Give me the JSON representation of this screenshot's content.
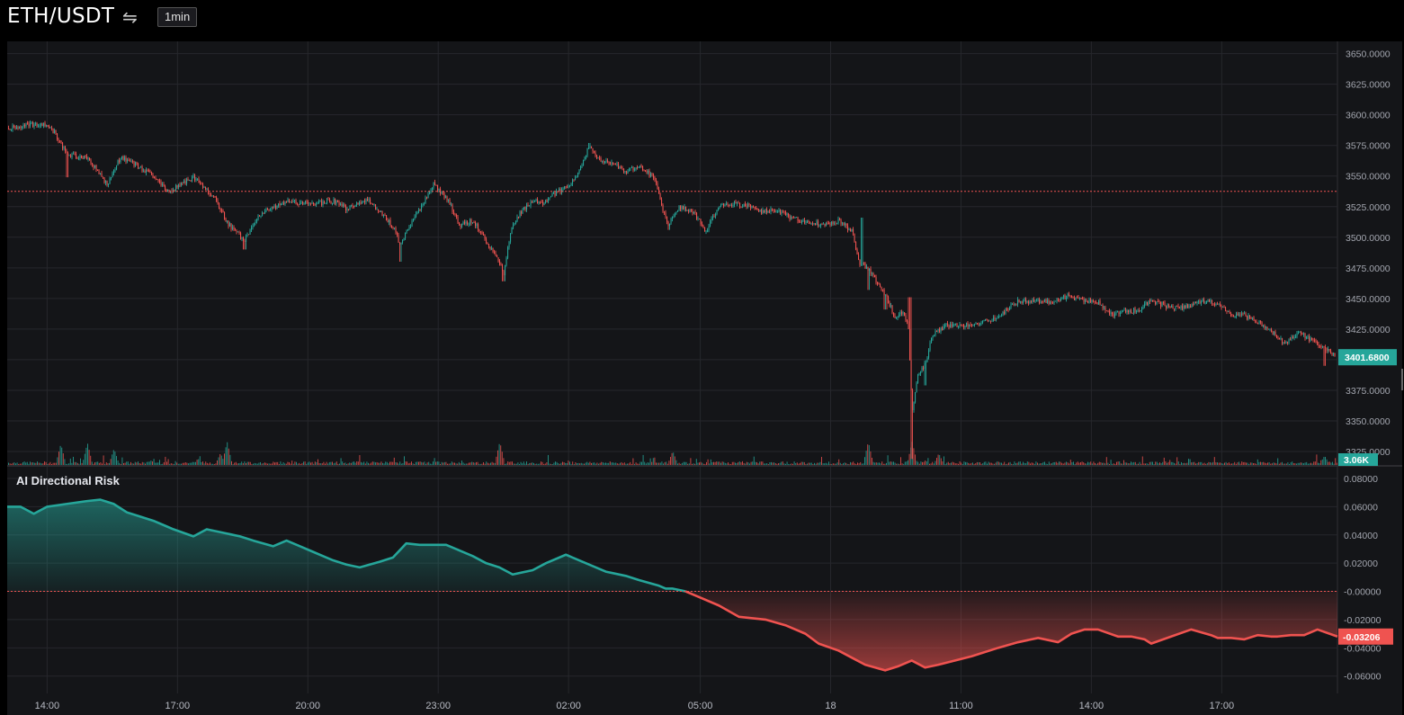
{
  "header": {
    "symbol": "ETH/USDT",
    "swap_icon": "swap-arrows-icon",
    "interval": "1min"
  },
  "colors": {
    "up": "#26a69a",
    "down": "#ef5350",
    "background": "#141518",
    "grid": "#26272c",
    "axis_text": "#a3a6af",
    "reference_line": "#ef5350"
  },
  "chart_data": [
    {
      "type": "candlestick",
      "title": "",
      "x_tick_labels": [
        "14:00",
        "17:00",
        "20:00",
        "23:00",
        "02:00",
        "05:00",
        "18",
        "11:00",
        "14:00",
        "17:00"
      ],
      "y_tick_labels": [
        "3650.0000",
        "3625.0000",
        "3600.0000",
        "3575.0000",
        "3550.0000",
        "3525.0000",
        "3500.0000",
        "3475.0000",
        "3450.0000",
        "3425.0000",
        "3400.0000",
        "3375.0000",
        "3350.0000",
        "3325.0000"
      ],
      "ylim": [
        3314,
        3660
      ],
      "reference_level": 3537.5,
      "current_price_label": "3401.6800",
      "volume_label": "3.06K",
      "grid": true,
      "close_path": [
        [
          0,
          3589
        ],
        [
          0.015,
          3592
        ],
        [
          0.028,
          3592
        ],
        [
          0.035,
          3586
        ],
        [
          0.045,
          3567
        ],
        [
          0.06,
          3565
        ],
        [
          0.075,
          3543
        ],
        [
          0.085,
          3566
        ],
        [
          0.095,
          3560
        ],
        [
          0.11,
          3549
        ],
        [
          0.12,
          3537
        ],
        [
          0.14,
          3549
        ],
        [
          0.155,
          3533
        ],
        [
          0.165,
          3512
        ],
        [
          0.178,
          3497
        ],
        [
          0.19,
          3519
        ],
        [
          0.21,
          3529
        ],
        [
          0.23,
          3527
        ],
        [
          0.245,
          3530
        ],
        [
          0.255,
          3523
        ],
        [
          0.27,
          3531
        ],
        [
          0.282,
          3519
        ],
        [
          0.29,
          3508
        ],
        [
          0.295,
          3494
        ],
        [
          0.305,
          3514
        ],
        [
          0.315,
          3533
        ],
        [
          0.32,
          3544
        ],
        [
          0.33,
          3532
        ],
        [
          0.34,
          3510
        ],
        [
          0.35,
          3514
        ],
        [
          0.36,
          3496
        ],
        [
          0.367,
          3486
        ],
        [
          0.373,
          3470
        ],
        [
          0.378,
          3504
        ],
        [
          0.385,
          3520
        ],
        [
          0.395,
          3530
        ],
        [
          0.404,
          3528
        ],
        [
          0.41,
          3535
        ],
        [
          0.42,
          3541
        ],
        [
          0.428,
          3550
        ],
        [
          0.437,
          3574
        ],
        [
          0.447,
          3561
        ],
        [
          0.455,
          3561
        ],
        [
          0.465,
          3553
        ],
        [
          0.475,
          3559
        ],
        [
          0.487,
          3547
        ],
        [
          0.492,
          3524
        ],
        [
          0.497,
          3510
        ],
        [
          0.505,
          3525
        ],
        [
          0.515,
          3521
        ],
        [
          0.525,
          3505
        ],
        [
          0.535,
          3526
        ],
        [
          0.545,
          3527
        ],
        [
          0.556,
          3526
        ],
        [
          0.567,
          3521
        ],
        [
          0.577,
          3522
        ],
        [
          0.587,
          3517
        ],
        [
          0.595,
          3514
        ],
        [
          0.605,
          3512
        ],
        [
          0.615,
          3511
        ],
        [
          0.625,
          3513
        ],
        [
          0.635,
          3505
        ],
        [
          0.64,
          3480
        ],
        [
          0.647,
          3474
        ],
        [
          0.653,
          3464
        ],
        [
          0.66,
          3452
        ],
        [
          0.668,
          3433
        ],
        [
          0.673,
          3440
        ],
        [
          0.677,
          3428
        ],
        [
          0.68,
          3356
        ],
        [
          0.684,
          3388
        ],
        [
          0.69,
          3397
        ],
        [
          0.695,
          3420
        ],
        [
          0.705,
          3428
        ],
        [
          0.72,
          3428
        ],
        [
          0.735,
          3431
        ],
        [
          0.745,
          3436
        ],
        [
          0.76,
          3448
        ],
        [
          0.772,
          3448
        ],
        [
          0.785,
          3447
        ],
        [
          0.797,
          3452
        ],
        [
          0.81,
          3448
        ],
        [
          0.82,
          3447
        ],
        [
          0.83,
          3437
        ],
        [
          0.84,
          3439
        ],
        [
          0.85,
          3441
        ],
        [
          0.86,
          3448
        ],
        [
          0.87,
          3444
        ],
        [
          0.88,
          3442
        ],
        [
          0.89,
          3445
        ],
        [
          0.9,
          3448
        ],
        [
          0.91,
          3445
        ],
        [
          0.92,
          3436
        ],
        [
          0.93,
          3436
        ],
        [
          0.94,
          3431
        ],
        [
          0.948,
          3425
        ],
        [
          0.955,
          3418
        ],
        [
          0.96,
          3412
        ],
        [
          0.97,
          3422
        ],
        [
          0.98,
          3416
        ],
        [
          0.99,
          3410
        ],
        [
          1,
          3402
        ]
      ],
      "low_spikes": [
        [
          0.045,
          3549
        ],
        [
          0.12,
          3538
        ],
        [
          0.178,
          3490
        ],
        [
          0.295,
          3480
        ],
        [
          0.373,
          3464
        ],
        [
          0.497,
          3506
        ],
        [
          0.647,
          3457
        ],
        [
          0.66,
          3441
        ],
        [
          0.68,
          3319
        ],
        [
          0.69,
          3379
        ],
        [
          0.99,
          3395
        ]
      ],
      "high_spikes": [
        [
          0.437,
          3577
        ],
        [
          0.642,
          3516
        ],
        [
          0.678,
          3451
        ]
      ],
      "volume_spikes": [
        [
          0.04,
          0.9
        ],
        [
          0.06,
          0.95
        ],
        [
          0.08,
          0.7
        ],
        [
          0.16,
          0.5
        ],
        [
          0.165,
          1.0
        ],
        [
          0.37,
          1.0
        ],
        [
          0.5,
          0.6
        ],
        [
          0.647,
          1.0
        ],
        [
          0.68,
          1.0
        ],
        [
          0.7,
          0.5
        ],
        [
          0.99,
          0.4
        ]
      ]
    },
    {
      "type": "area",
      "title": "AI Directional Risk",
      "y_tick_labels": [
        "0.08000",
        "0.06000",
        "0.04000",
        "0.02000",
        "-0.00000",
        "-0.02000",
        "-0.04000",
        "-0.06000"
      ],
      "ylim": [
        -0.0723,
        0.0883
      ],
      "zero_line": 0,
      "current_value_label": "-0.03206",
      "positive_color": "#26a69a",
      "negative_color": "#ef5350",
      "grid": true,
      "x": [
        0,
        0.01,
        0.02,
        0.03,
        0.045,
        0.06,
        0.07,
        0.08,
        0.09,
        0.1,
        0.11,
        0.12,
        0.125,
        0.14,
        0.15,
        0.16,
        0.175,
        0.185,
        0.2,
        0.21,
        0.22,
        0.23,
        0.24,
        0.245,
        0.255,
        0.265,
        0.28,
        0.29,
        0.3,
        0.31,
        0.32,
        0.33,
        0.34,
        0.35,
        0.36,
        0.37,
        0.38,
        0.395,
        0.405,
        0.42,
        0.43,
        0.44,
        0.45,
        0.465,
        0.475,
        0.49,
        0.495,
        0.5,
        0.51,
        0.52,
        0.535,
        0.55,
        0.57,
        0.585,
        0.6,
        0.61,
        0.625,
        0.635,
        0.645,
        0.66,
        0.67,
        0.68,
        0.69,
        0.7,
        0.725,
        0.745,
        0.76,
        0.775,
        0.79,
        0.8,
        0.81,
        0.82,
        0.835,
        0.845,
        0.855,
        0.86,
        0.875,
        0.89,
        0.905,
        0.91,
        0.92,
        0.93,
        0.94,
        0.95,
        0.955,
        0.965,
        0.975,
        0.985,
        1.0
      ],
      "values": [
        0.06,
        0.06,
        0.055,
        0.06,
        0.062,
        0.064,
        0.065,
        0.062,
        0.056,
        0.053,
        0.05,
        0.046,
        0.044,
        0.039,
        0.044,
        0.042,
        0.039,
        0.036,
        0.032,
        0.036,
        0.032,
        0.028,
        0.024,
        0.022,
        0.019,
        0.017,
        0.021,
        0.024,
        0.034,
        0.033,
        0.033,
        0.033,
        0.029,
        0.025,
        0.02,
        0.017,
        0.012,
        0.015,
        0.02,
        0.026,
        0.022,
        0.018,
        0.014,
        0.011,
        0.008,
        0.004,
        0.002,
        0.002,
        0.0,
        -0.004,
        -0.01,
        -0.018,
        -0.02,
        -0.024,
        -0.03,
        -0.037,
        -0.042,
        -0.047,
        -0.052,
        -0.056,
        -0.053,
        -0.049,
        -0.054,
        -0.052,
        -0.046,
        -0.04,
        -0.036,
        -0.033,
        -0.036,
        -0.03,
        -0.027,
        -0.027,
        -0.032,
        -0.032,
        -0.034,
        -0.037,
        -0.032,
        -0.027,
        -0.031,
        -0.033,
        -0.033,
        -0.034,
        -0.031,
        -0.032,
        -0.032,
        -0.031,
        -0.031,
        -0.027,
        -0.032
      ]
    }
  ]
}
